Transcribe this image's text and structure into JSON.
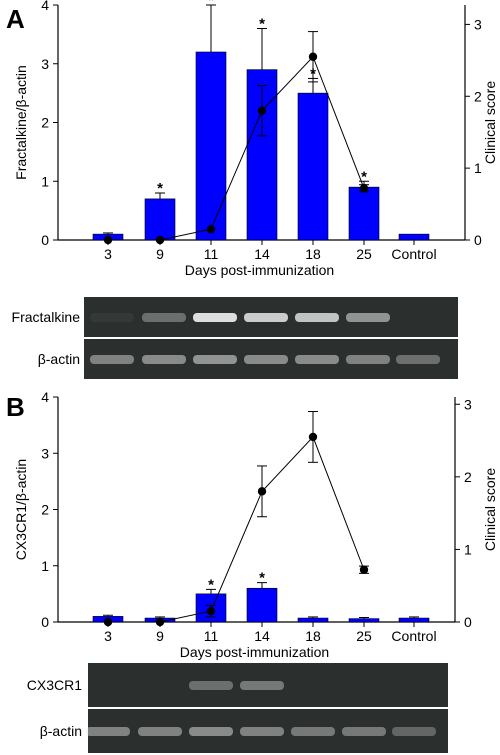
{
  "colors": {
    "bar": "#0000ff",
    "bar_stroke": "#000000",
    "line": "#000000",
    "gel_bg": "#2b2f2d",
    "gel_band": "#e8e8e8"
  },
  "chart_data": [
    {
      "panel": "A",
      "type": "bar",
      "categories": [
        "3",
        "9",
        "11",
        "14",
        "18",
        "25",
        "Control"
      ],
      "xlabel": "Days post-immunization",
      "ylabel": "Fractalkine/β-actin",
      "ylim": [
        0,
        4
      ],
      "yticks": [
        "0",
        "1",
        "2",
        "3",
        "4"
      ],
      "series": [
        {
          "axis": "left",
          "kind": "bar",
          "values": [
            0.1,
            0.7,
            3.2,
            2.9,
            2.5,
            0.9,
            0.1
          ],
          "errors": [
            0.02,
            0.1,
            0.8,
            0.7,
            0.25,
            0.1,
            0.0
          ],
          "significant": [
            false,
            true,
            true,
            true,
            true,
            true,
            false
          ]
        },
        {
          "axis": "right",
          "kind": "line",
          "values": [
            0,
            0,
            0.15,
            1.8,
            2.55,
            0.72,
            null
          ],
          "errors": [
            0,
            0,
            0,
            0.35,
            0.35,
            0.05,
            null
          ]
        }
      ],
      "y2label": "Clinical score",
      "y2lim": [
        0,
        3.27
      ],
      "y2ticks": [
        "0",
        "1",
        "2",
        "3"
      ],
      "star_symbol": "*",
      "grid": false,
      "gel": {
        "rows": [
          {
            "label": "Fractalkine",
            "intensities": [
              0.05,
              0.35,
              0.95,
              0.85,
              0.8,
              0.55,
              0.0
            ]
          },
          {
            "label": "β-actin",
            "intensities": [
              0.45,
              0.5,
              0.55,
              0.5,
              0.5,
              0.45,
              0.35
            ]
          }
        ]
      }
    },
    {
      "panel": "B",
      "type": "bar",
      "categories": [
        "3",
        "9",
        "11",
        "14",
        "18",
        "25",
        "Control"
      ],
      "xlabel": "Days post-immunization",
      "ylabel": "CX3CR1/β-actin",
      "ylim": [
        0,
        4
      ],
      "yticks": [
        "0",
        "1",
        "2",
        "3",
        "4"
      ],
      "series": [
        {
          "axis": "left",
          "kind": "bar",
          "values": [
            0.1,
            0.07,
            0.5,
            0.6,
            0.07,
            0.06,
            0.07
          ],
          "errors": [
            0.02,
            0.02,
            0.08,
            0.1,
            0.02,
            0.02,
            0.02
          ],
          "significant": [
            false,
            false,
            true,
            true,
            false,
            false,
            false
          ]
        },
        {
          "axis": "right",
          "kind": "line",
          "values": [
            0,
            0,
            0.15,
            1.8,
            2.55,
            0.72,
            null
          ],
          "errors": [
            0,
            0,
            0.08,
            0.35,
            0.35,
            0.05,
            null
          ]
        }
      ],
      "y2label": "Clinical score",
      "y2lim": [
        0,
        3.1
      ],
      "y2ticks": [
        "0",
        "1",
        "2",
        "3"
      ],
      "star_symbol": "*",
      "grid": false,
      "gel": {
        "rows": [
          {
            "label": "CX3CR1",
            "intensities": [
              0.0,
              0.0,
              0.35,
              0.4,
              0.0,
              0.0,
              0.0
            ]
          },
          {
            "label": "β-actin",
            "intensities": [
              0.45,
              0.45,
              0.5,
              0.45,
              0.4,
              0.4,
              0.3
            ]
          }
        ]
      }
    }
  ]
}
